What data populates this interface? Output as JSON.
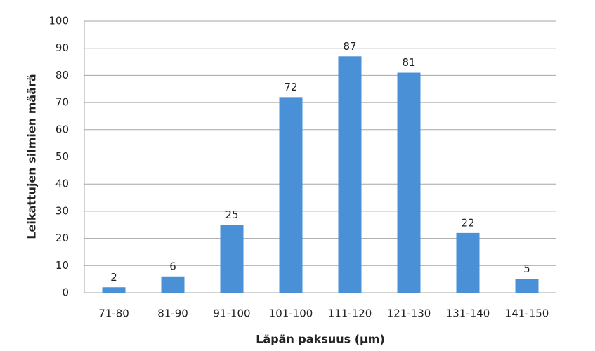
{
  "chart_data": {
    "type": "bar",
    "x_label": "Läpän paksuus (µm)",
    "y_label": "Leikattujen silmien määrä",
    "categories": [
      "71-80",
      "81-90",
      "91-100",
      "101-100",
      "111-120",
      "121-130",
      "131-140",
      "141-150"
    ],
    "values": [
      2,
      6,
      25,
      72,
      87,
      81,
      22,
      5
    ],
    "color": "#4a90d6",
    "ylim": [
      0,
      100
    ],
    "yticks": [
      0,
      10,
      20,
      30,
      40,
      50,
      60,
      70,
      80,
      90,
      100
    ],
    "grid": true
  }
}
